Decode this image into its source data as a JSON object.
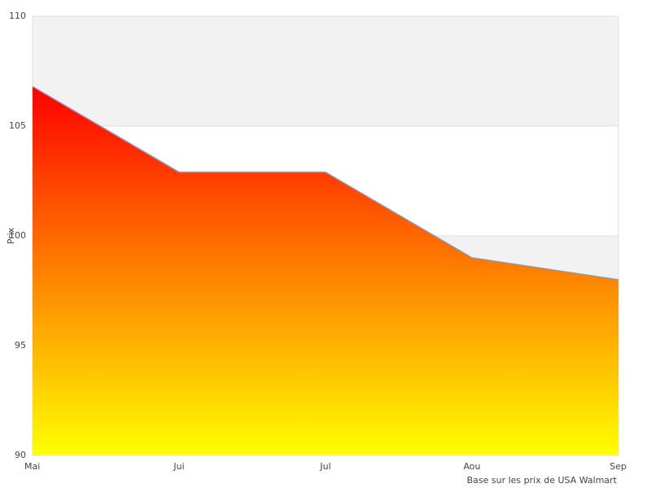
{
  "chart_data": {
    "type": "area",
    "categories": [
      "Mai",
      "Jui",
      "Jul",
      "Aou",
      "Sep"
    ],
    "values": [
      106.8,
      102.9,
      102.9,
      99.0,
      98.0
    ],
    "color": "#6a9fd8",
    "gradient": [
      "#ff0000",
      "#ffff00"
    ],
    "ylabel": "Prix",
    "note": "Base sur les prix de USA Walmart",
    "ylim": [
      90,
      110
    ],
    "yticks": [
      90,
      95,
      100,
      105,
      110
    ],
    "grid": true
  }
}
